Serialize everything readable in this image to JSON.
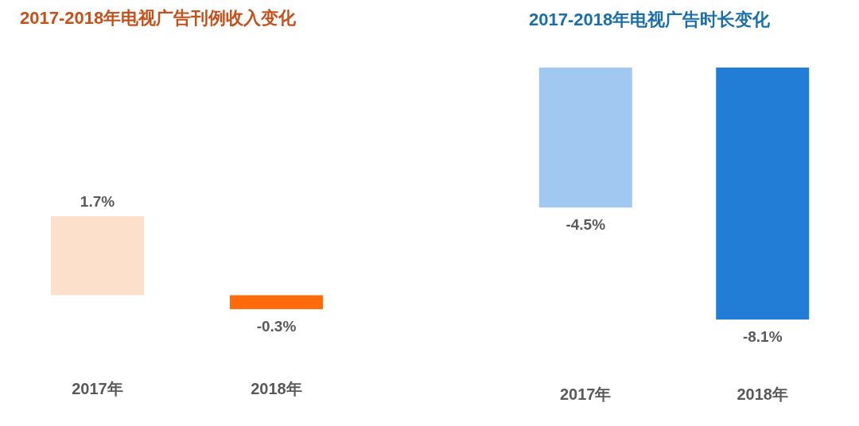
{
  "chart_data": [
    {
      "type": "bar",
      "title": "2017-2018年电视广告刊例收入变化",
      "categories": [
        "2017年",
        "2018年"
      ],
      "values": [
        1.7,
        -0.3
      ],
      "value_labels": [
        "1.7%",
        "-0.3%"
      ],
      "colors": [
        "#fde0cc",
        "#ff6a0a"
      ]
    },
    {
      "type": "bar",
      "title": "2017-2018年电视广告时长变化",
      "categories": [
        "2017年",
        "2018年"
      ],
      "values": [
        -4.5,
        -8.1
      ],
      "value_labels": [
        "-4.5%",
        "-8.1%"
      ],
      "colors": [
        "#a0c8f0",
        "#217dd6"
      ]
    }
  ]
}
